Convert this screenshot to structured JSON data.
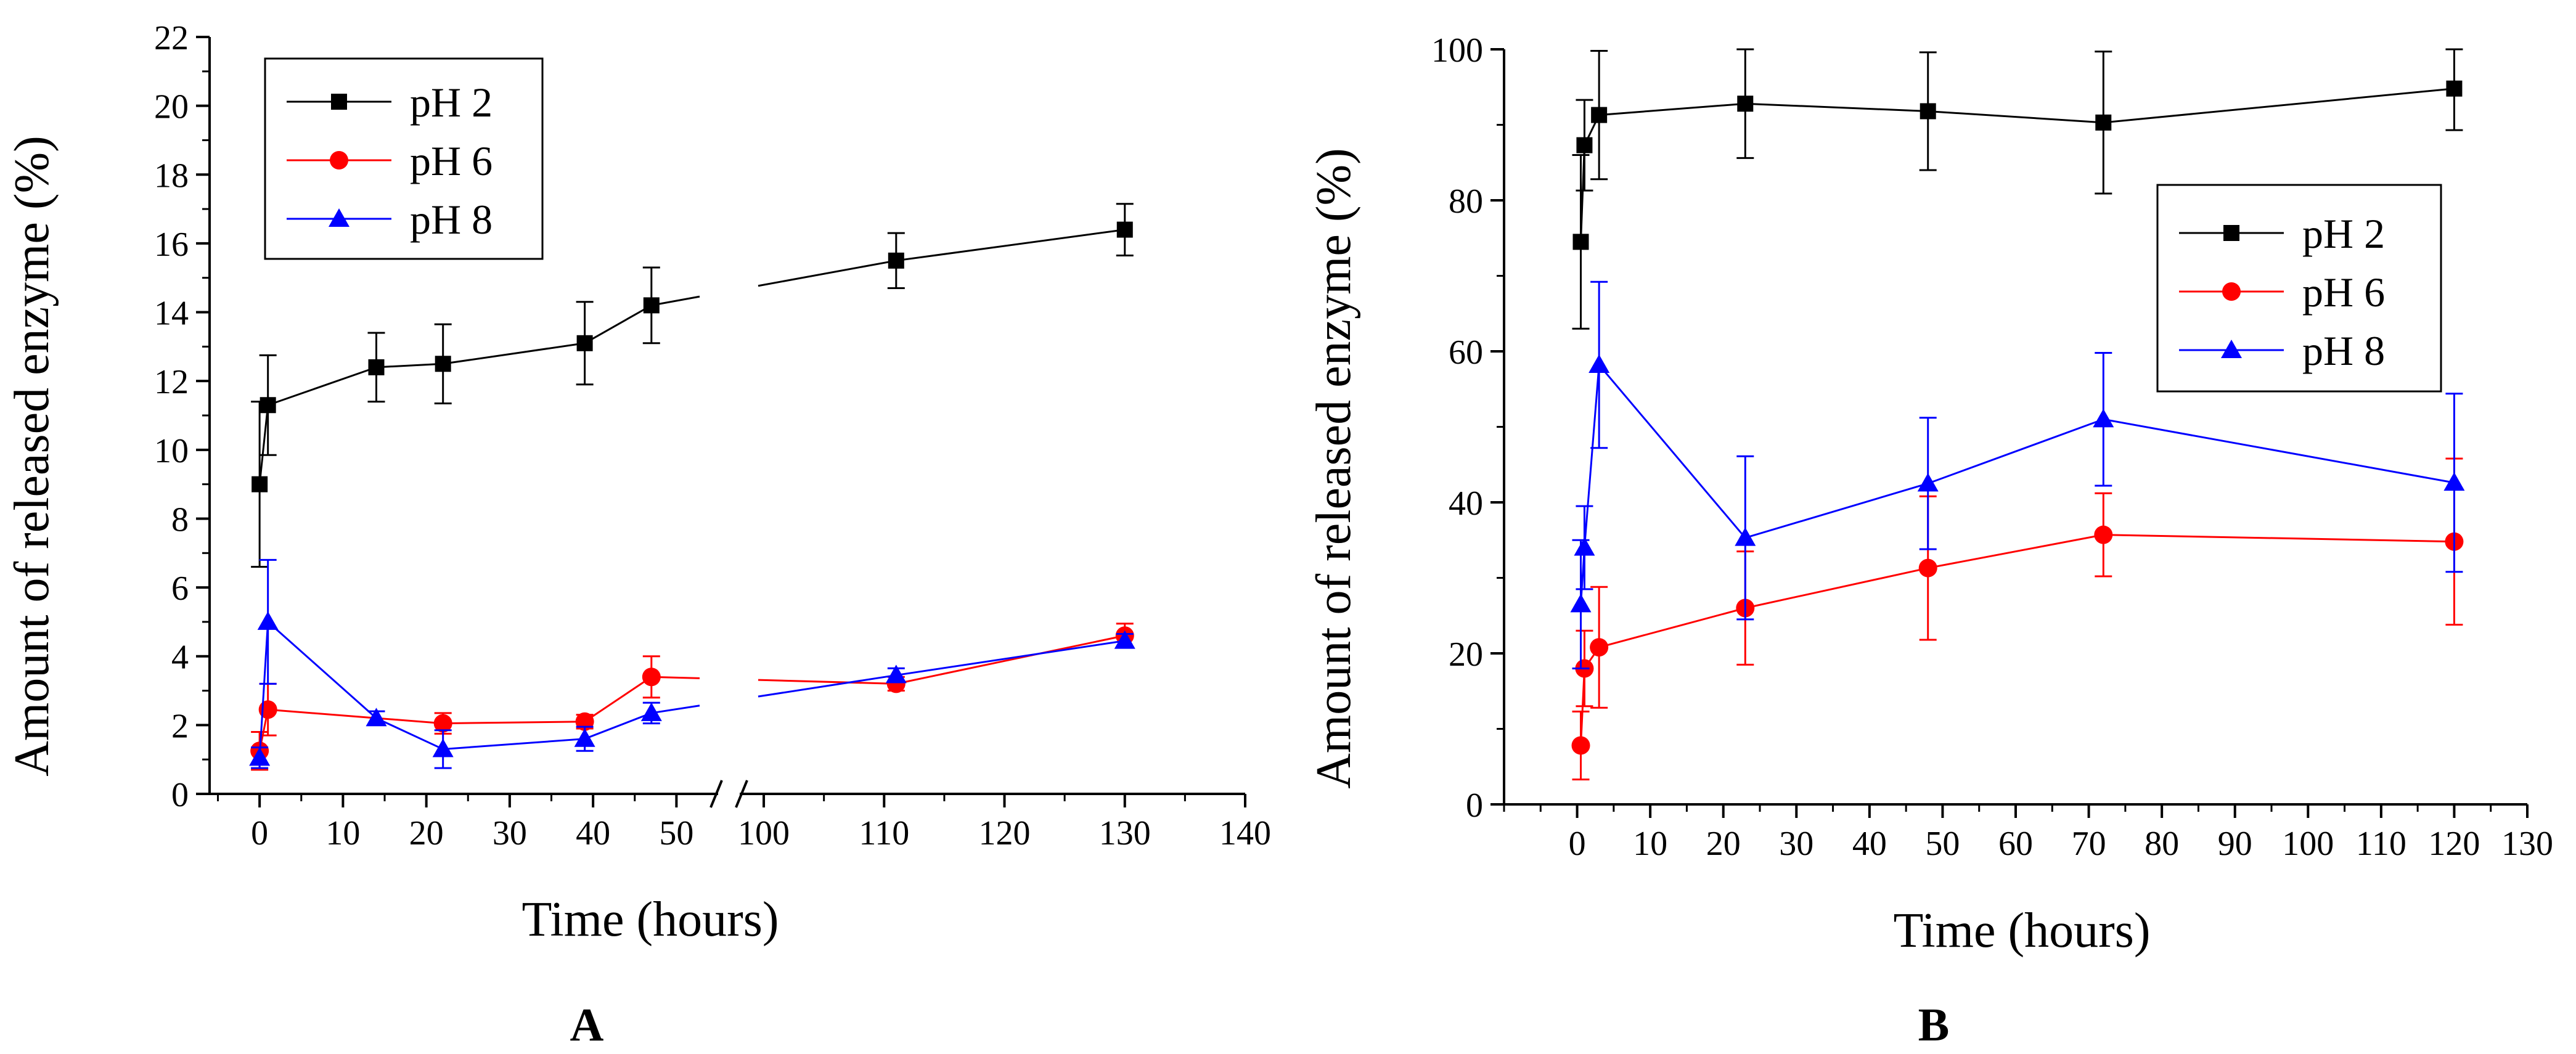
{
  "chart_data": [
    {
      "type": "line",
      "panel_label": "A",
      "xlabel": "Time (hours)",
      "ylabel": "Amount of released enzyme (%)",
      "ylim": [
        0,
        22
      ],
      "yticks": [
        "0",
        "2",
        "4",
        "6",
        "8",
        "10",
        "12",
        "14",
        "16",
        "18",
        "20",
        "22"
      ],
      "xticks_left": [
        "0",
        "10",
        "20",
        "30",
        "40",
        "50"
      ],
      "xticks_right": [
        "100",
        "110",
        "120",
        "130",
        "140"
      ],
      "xlim_left": [
        -6,
        55
      ],
      "xlim_right": [
        98,
        140
      ],
      "axis_break": "between 50 and 100",
      "legend_position": "top-left",
      "series": [
        {
          "name": "pH 2",
          "color": "#000000",
          "marker": "square",
          "x": [
            0,
            1,
            14,
            22,
            39,
            47,
            111,
            130
          ],
          "y": [
            9.0,
            11.3,
            12.4,
            12.5,
            13.1,
            14.2,
            15.5,
            16.4
          ],
          "err": [
            2.4,
            1.45,
            1.0,
            1.15,
            1.2,
            1.1,
            0.8,
            0.75
          ]
        },
        {
          "name": "pH 6",
          "color": "#ff0000",
          "marker": "circle",
          "x": [
            0,
            1,
            22,
            39,
            47,
            111,
            130
          ],
          "y": [
            1.25,
            2.45,
            2.05,
            2.1,
            3.4,
            3.2,
            4.6
          ],
          "err": [
            0.55,
            0.75,
            0.3,
            0.2,
            0.6,
            0.2,
            0.35
          ]
        },
        {
          "name": "pH 8",
          "color": "#0000ff",
          "marker": "triangle",
          "x": [
            0,
            1,
            14,
            22,
            39,
            47,
            111,
            130
          ],
          "y": [
            1.05,
            5.0,
            2.2,
            1.3,
            1.6,
            2.35,
            3.45,
            4.45
          ],
          "err": [
            0.3,
            1.8,
            0.2,
            0.55,
            0.35,
            0.3,
            0.2,
            0.2
          ]
        }
      ]
    },
    {
      "type": "line",
      "panel_label": "B",
      "xlabel": "Time (hours)",
      "ylabel": "Amount of released enzyme (%)",
      "ylim": [
        0,
        100
      ],
      "xlim": [
        -10,
        130
      ],
      "yticks": [
        "0",
        "20",
        "40",
        "60",
        "80",
        "100"
      ],
      "xticks": [
        "0",
        "10",
        "20",
        "30",
        "40",
        "50",
        "60",
        "70",
        "80",
        "90",
        "100",
        "110",
        "120",
        "130"
      ],
      "legend_position": "right",
      "series": [
        {
          "name": "pH 2",
          "color": "#000000",
          "marker": "square",
          "x": [
            0.5,
            1,
            3,
            23,
            48,
            72,
            120
          ],
          "y": [
            74.5,
            87.3,
            91.3,
            92.8,
            91.8,
            90.3,
            94.8
          ],
          "err": [
            11.5,
            6.0,
            8.5,
            7.2,
            7.8,
            9.4,
            5.5
          ]
        },
        {
          "name": "pH 6",
          "color": "#ff0000",
          "marker": "circle",
          "x": [
            0.5,
            1,
            3,
            23,
            48,
            72,
            120
          ],
          "y": [
            7.8,
            18.0,
            20.8,
            26.0,
            31.3,
            35.7,
            34.8
          ],
          "err": [
            4.5,
            5.0,
            8.0,
            7.5,
            9.5,
            5.5,
            11.0
          ]
        },
        {
          "name": "pH 8",
          "color": "#0000ff",
          "marker": "triangle",
          "x": [
            0.5,
            1,
            3,
            23,
            48,
            72,
            120
          ],
          "y": [
            26.5,
            34.0,
            58.2,
            35.3,
            42.5,
            51.0,
            42.6
          ],
          "err": [
            8.5,
            5.5,
            11.0,
            10.8,
            8.7,
            8.8,
            11.8
          ]
        }
      ]
    }
  ]
}
